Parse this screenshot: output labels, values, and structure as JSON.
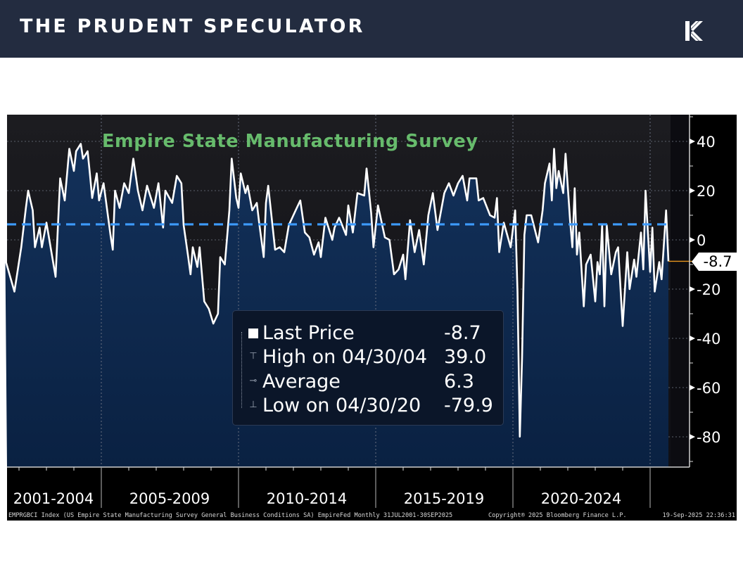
{
  "header": {
    "brand": "THE PRUDENT SPECULATOR",
    "logo_icon": "k-logo-icon",
    "background": "#232c40"
  },
  "chart_data": {
    "type": "area",
    "title": "Empire State Manufacturing Survey",
    "xlabel": "",
    "ylabel": "",
    "x_range": [
      "2001-07",
      "2025-09"
    ],
    "ylim": [
      -92,
      50
    ],
    "y_ticks": [
      40,
      20,
      0,
      -20,
      -40,
      -60,
      -80
    ],
    "x_tick_labels": [
      "2001-2004",
      "2005-2009",
      "2010-2014",
      "2015-2019",
      "2020-2024"
    ],
    "grid": true,
    "y_axis_side": "right",
    "colors": {
      "line": "#ffffff",
      "fill": "#0f2a4d",
      "average": "#3d9bff",
      "title": "#67bb6c",
      "last_marker": "#e8961e"
    },
    "average": {
      "label": "Average",
      "value": 6.3
    },
    "last": {
      "label": "Last Price",
      "value": -8.7,
      "display": "-8.7"
    },
    "high": {
      "label": "High on 04/30/04",
      "value": 39.0,
      "display": "39.0"
    },
    "low": {
      "label": "Low on 04/30/20",
      "value": -79.9,
      "display": "-79.9"
    },
    "average_display": "6.3",
    "series": [
      {
        "x": [
          "2001-07",
          "2001-11",
          "2002-02",
          "2002-04",
          "2002-05",
          "2002-07",
          "2002-08",
          "2002-10",
          "2002-11",
          "2003-01",
          "2003-03",
          "2003-05",
          "2003-07",
          "2003-09",
          "2003-11",
          "2004-01",
          "2004-02",
          "2004-04",
          "2004-05",
          "2004-07",
          "2004-08",
          "2004-09",
          "2004-11",
          "2004-12",
          "2005-02",
          "2005-03",
          "2005-05",
          "2005-06",
          "2005-07",
          "2005-09",
          "2005-11",
          "2006-01",
          "2006-03",
          "2006-05",
          "2006-07",
          "2006-09",
          "2006-12",
          "2007-02",
          "2007-04",
          "2007-05",
          "2007-08",
          "2007-10",
          "2007-12",
          "2008-01",
          "2008-03",
          "2008-04",
          "2008-05",
          "2008-07",
          "2008-08",
          "2008-10",
          "2008-12",
          "2009-02",
          "2009-04",
          "2009-05",
          "2009-07",
          "2009-09",
          "2009-10",
          "2009-12",
          "2010-01",
          "2010-02",
          "2010-04",
          "2010-05",
          "2010-07",
          "2010-09",
          "2010-10",
          "2010-12",
          "2011-01",
          "2011-02",
          "2011-05",
          "2011-07",
          "2011-09",
          "2011-11",
          "2012-02",
          "2012-04",
          "2012-06",
          "2012-08",
          "2012-10",
          "2012-12",
          "2013-01",
          "2013-03",
          "2013-06",
          "2013-07",
          "2013-09",
          "2013-12",
          "2014-01",
          "2014-03",
          "2014-05",
          "2014-08",
          "2014-09",
          "2014-11",
          "2014-12",
          "2015-02",
          "2015-05",
          "2015-07",
          "2015-09",
          "2015-11",
          "2016-01",
          "2016-02",
          "2016-04",
          "2016-06",
          "2016-08",
          "2016-10",
          "2016-12",
          "2017-02",
          "2017-04",
          "2017-07",
          "2017-09",
          "2017-11",
          "2018-01",
          "2018-03",
          "2018-05",
          "2018-06",
          "2018-09",
          "2018-10",
          "2018-12",
          "2019-03",
          "2019-05",
          "2019-06",
          "2019-07",
          "2019-09",
          "2019-12",
          "2020-02",
          "2020-03",
          "2020-04",
          "2020-05",
          "2020-06",
          "2020-07",
          "2020-09",
          "2020-12",
          "2021-02",
          "2021-03",
          "2021-05",
          "2021-06",
          "2021-07",
          "2021-08",
          "2021-09",
          "2021-11",
          "2021-12",
          "2022-02",
          "2022-03",
          "2022-04",
          "2022-05",
          "2022-06",
          "2022-08",
          "2022-09",
          "2022-11",
          "2023-01",
          "2023-02",
          "2023-03",
          "2023-04",
          "2023-05",
          "2023-06",
          "2023-08",
          "2023-10",
          "2023-11",
          "2024-01",
          "2024-03",
          "2024-04",
          "2024-06",
          "2024-07",
          "2024-09",
          "2024-10",
          "2024-11",
          "2025-01",
          "2025-02",
          "2025-03",
          "2025-05",
          "2025-06",
          "2025-08",
          "2025-09"
        ],
        "y": [
          -8,
          -21,
          -3,
          13,
          20,
          12,
          -3,
          5,
          -3,
          7,
          -4,
          -15,
          25,
          16,
          37,
          28,
          36,
          39,
          33,
          36,
          27,
          17,
          27,
          16,
          23,
          16,
          2,
          -4,
          20,
          13,
          23,
          19,
          33,
          20,
          12,
          22,
          13,
          23,
          5,
          20,
          15,
          26,
          23,
          6,
          -7,
          -14,
          -3,
          -11,
          -3,
          -25,
          -28,
          -34,
          -30,
          -7,
          -10,
          12,
          33,
          17,
          13,
          27,
          19,
          22,
          12,
          15,
          7,
          -7,
          15,
          22,
          -4,
          -3,
          -5,
          6,
          12,
          16,
          3,
          1,
          -6,
          -1,
          -7,
          9,
          0,
          5,
          9,
          2,
          14,
          3,
          19,
          18,
          29,
          11,
          -3,
          14,
          1,
          0,
          -14,
          -12,
          -6,
          -16,
          8,
          -5,
          4,
          -10,
          10,
          19,
          4,
          19,
          23,
          18,
          23,
          26,
          16,
          25,
          25,
          16,
          17,
          10,
          9,
          17,
          -5,
          7,
          -3,
          12,
          -21,
          -79.9,
          -48,
          2,
          10,
          10,
          -1,
          12,
          23,
          31,
          16,
          37,
          21,
          28,
          19,
          35,
          8,
          -3,
          21,
          -6,
          3,
          -27,
          -10,
          -6,
          -25,
          -9,
          -14,
          6,
          -27,
          6,
          -14,
          -5,
          -3,
          -35,
          -5,
          -20,
          -8,
          -15,
          3,
          -12,
          20,
          -13,
          5,
          -21,
          -9,
          -16,
          12,
          -8.7
        ]
      }
    ]
  },
  "footer": {
    "description": "EMPRGBCI Index (US Empire State Manufacturing Survey General Business Conditions SA) EmpireFed  Monthly 31JUL2001-30SEP2025",
    "copyright": "Copyright® 2025 Bloomberg Finance L.P.",
    "timestamp": "19-Sep-2025 22:36:31"
  }
}
